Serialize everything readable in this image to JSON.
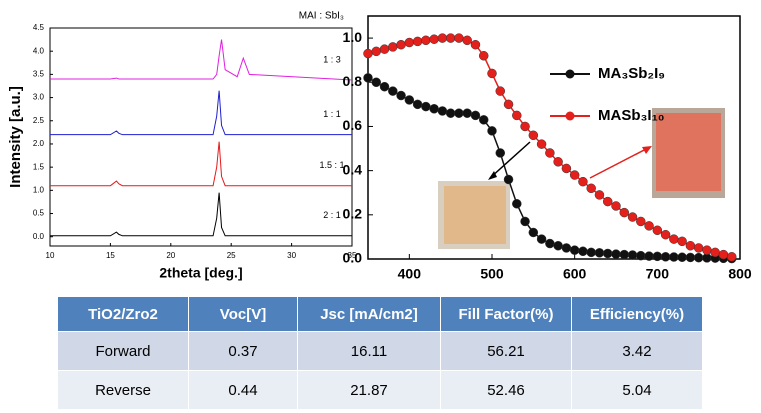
{
  "charts": [
    {
      "type": "line",
      "subtitle": "MAI : SbI₃",
      "x_label": "2theta [deg.]",
      "y_label": "Intensity [a.u.]",
      "xlim": [
        10,
        35
      ],
      "xticks": [
        10,
        15,
        20,
        25,
        30,
        35
      ],
      "ylim": [
        -0.2,
        4.5
      ],
      "yticks": [
        {
          "value": 0,
          "label": "0.0"
        },
        0.5,
        {
          "value": 1,
          "label": "1.0"
        },
        1.5,
        {
          "value": 2,
          "label": "2.0"
        },
        2.5,
        {
          "value": 3,
          "label": "3.0"
        },
        3.5,
        {
          "value": 4,
          "label": "4.0"
        },
        4.5
      ],
      "x": [
        10,
        15,
        15.5,
        15.7,
        16,
        23.5,
        23.8,
        24,
        24.2,
        24.5,
        25.5,
        26,
        26.5,
        35
      ],
      "series": [
        {
          "name": "2 : 1",
          "color": "#000000",
          "values": [
            0.02,
            0.02,
            0.1,
            0.05,
            0.02,
            0.02,
            0.4,
            0.95,
            0.2,
            0.02,
            0.02,
            0.02,
            0.02,
            0.02
          ]
        },
        {
          "name": "1.5 : 1",
          "color": "#e41a1c",
          "values": [
            1.1,
            1.1,
            1.2,
            1.14,
            1.1,
            1.1,
            1.5,
            2.05,
            1.3,
            1.1,
            1.1,
            1.1,
            1.1,
            1.1
          ]
        },
        {
          "name": "1 : 1",
          "color": "#1f1fd0",
          "values": [
            2.2,
            2.2,
            2.28,
            2.23,
            2.2,
            2.2,
            2.6,
            3.15,
            2.4,
            2.2,
            2.2,
            2.2,
            2.2,
            2.2
          ]
        },
        {
          "name": "1 : 3",
          "color": "#e020e0",
          "values": [
            3.4,
            3.4,
            3.42,
            3.4,
            3.4,
            3.4,
            3.5,
            3.9,
            4.25,
            3.6,
            3.45,
            3.85,
            3.5,
            3.38
          ]
        }
      ]
    },
    {
      "type": "line",
      "markers": true,
      "xlim": [
        350,
        800
      ],
      "xticks": [
        400,
        500,
        600,
        700,
        800
      ],
      "ylim": [
        0,
        1.1
      ],
      "yticks": [
        {
          "value": 0,
          "label": "0.0"
        },
        0.2,
        0.4,
        0.6,
        0.8,
        {
          "value": 1,
          "label": "1.0"
        }
      ],
      "x": [
        350,
        360,
        370,
        380,
        390,
        400,
        410,
        420,
        430,
        440,
        450,
        460,
        470,
        480,
        490,
        500,
        510,
        520,
        530,
        540,
        550,
        560,
        570,
        580,
        590,
        600,
        610,
        620,
        630,
        640,
        650,
        660,
        670,
        680,
        690,
        700,
        710,
        720,
        730,
        740,
        750,
        760,
        770,
        780,
        790
      ],
      "series": [
        {
          "name": "MA₃Sb₂I₉",
          "color": "#111111",
          "values": [
            0.82,
            0.8,
            0.78,
            0.76,
            0.74,
            0.72,
            0.7,
            0.69,
            0.68,
            0.67,
            0.66,
            0.66,
            0.66,
            0.65,
            0.63,
            0.58,
            0.48,
            0.36,
            0.25,
            0.17,
            0.12,
            0.09,
            0.07,
            0.06,
            0.05,
            0.04,
            0.035,
            0.03,
            0.028,
            0.025,
            0.022,
            0.02,
            0.018,
            0.015,
            0.013,
            0.012,
            0.01,
            0.009,
            0.008,
            0.007,
            0.006,
            0.005,
            0.004,
            0.003,
            0.002
          ]
        },
        {
          "name": "MASb₃I₁₀",
          "color": "#e3201b",
          "values": [
            0.93,
            0.94,
            0.95,
            0.96,
            0.97,
            0.98,
            0.985,
            0.99,
            0.995,
            1.0,
            1.0,
            1.0,
            0.99,
            0.97,
            0.92,
            0.84,
            0.76,
            0.7,
            0.65,
            0.6,
            0.56,
            0.52,
            0.48,
            0.44,
            0.41,
            0.38,
            0.35,
            0.32,
            0.29,
            0.26,
            0.24,
            0.21,
            0.19,
            0.17,
            0.15,
            0.13,
            0.11,
            0.09,
            0.08,
            0.06,
            0.05,
            0.04,
            0.03,
            0.02,
            0.01
          ]
        }
      ]
    }
  ],
  "table": {
    "header": [
      "TiO2/Zro2",
      "Voc[V]",
      "Jsc [mA/cm2]",
      "Fill Factor(%)",
      "Efficiency(%)"
    ],
    "rows": [
      [
        "Forward",
        "0.37",
        "16.11",
        "56.21",
        "3.42"
      ],
      [
        "Reverse",
        "0.44",
        "21.87",
        "52.46",
        "5.04"
      ]
    ]
  }
}
